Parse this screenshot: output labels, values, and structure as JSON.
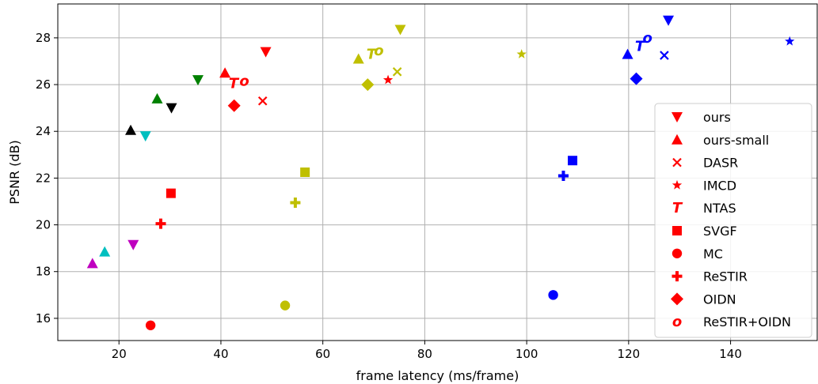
{
  "chart_data": {
    "type": "scatter",
    "xlabel": "frame latency (ms/frame)",
    "ylabel": "PSNR (dB)",
    "xlim": [
      8,
      157
    ],
    "ylim": [
      15.05,
      29.45
    ],
    "xticks": [
      20,
      40,
      60,
      80,
      100,
      120,
      140
    ],
    "yticks": [
      16,
      18,
      20,
      22,
      24,
      26,
      28
    ],
    "grid": true,
    "legend_position": "lower-right",
    "colors": {
      "red": "#ff0000",
      "green": "#008000",
      "black": "#000000",
      "cyan": "#00bfbf",
      "magenta": "#bf00bf",
      "olive": "#bfbf00",
      "blue": "#0000ff"
    },
    "legend": [
      {
        "label": "ours",
        "marker": "triangle-down"
      },
      {
        "label": "ours-small",
        "marker": "triangle-up"
      },
      {
        "label": "DASR",
        "marker": "x"
      },
      {
        "label": "IMCD",
        "marker": "star"
      },
      {
        "label": "NTAS",
        "marker": "T"
      },
      {
        "label": "SVGF",
        "marker": "square"
      },
      {
        "label": "MC",
        "marker": "circle"
      },
      {
        "label": "ReSTIR",
        "marker": "plus"
      },
      {
        "label": "OIDN",
        "marker": "diamond"
      },
      {
        "label": "ReSTIR+OIDN",
        "marker": "o-letter"
      }
    ],
    "points": [
      {
        "method": "ours",
        "marker": "triangle-down",
        "color": "red",
        "x": 48.8,
        "y": 27.4
      },
      {
        "method": "ours-small",
        "marker": "triangle-up",
        "color": "red",
        "x": 40.8,
        "y": 26.5
      },
      {
        "method": "DASR",
        "marker": "x",
        "color": "red",
        "x": 48.2,
        "y": 25.3
      },
      {
        "method": "NTAS",
        "marker": "T",
        "color": "red",
        "x": 42.5,
        "y": 26.05
      },
      {
        "method": "ReSTIR+OIDN",
        "marker": "o-letter",
        "color": "red",
        "x": 44.6,
        "y": 26.15
      },
      {
        "method": "OIDN",
        "marker": "diamond",
        "color": "red",
        "x": 42.6,
        "y": 25.1
      },
      {
        "method": "SVGF",
        "marker": "square",
        "color": "red",
        "x": 30.2,
        "y": 21.35
      },
      {
        "method": "ReSTIR",
        "marker": "plus",
        "color": "red",
        "x": 28.2,
        "y": 20.05
      },
      {
        "method": "MC",
        "marker": "circle",
        "color": "red",
        "x": 26.2,
        "y": 15.7
      },
      {
        "method": "IMCD",
        "marker": "star",
        "color": "red",
        "x": 72.8,
        "y": 26.2
      },
      {
        "method": "ours",
        "marker": "triangle-down",
        "color": "green",
        "x": 35.5,
        "y": 26.2
      },
      {
        "method": "ours-small",
        "marker": "triangle-up",
        "color": "green",
        "x": 27.5,
        "y": 25.4
      },
      {
        "method": "ours",
        "marker": "triangle-down",
        "color": "black",
        "x": 30.3,
        "y": 25.0
      },
      {
        "method": "ours-small",
        "marker": "triangle-up",
        "color": "black",
        "x": 22.3,
        "y": 24.05
      },
      {
        "method": "ours",
        "marker": "triangle-down",
        "color": "cyan",
        "x": 25.2,
        "y": 23.8
      },
      {
        "method": "ours-small",
        "marker": "triangle-up",
        "color": "cyan",
        "x": 17.2,
        "y": 18.85
      },
      {
        "method": "ours",
        "marker": "triangle-down",
        "color": "magenta",
        "x": 22.8,
        "y": 19.15
      },
      {
        "method": "ours-small",
        "marker": "triangle-up",
        "color": "magenta",
        "x": 14.8,
        "y": 18.35
      },
      {
        "method": "ours",
        "marker": "triangle-down",
        "color": "olive",
        "x": 75.2,
        "y": 28.35
      },
      {
        "method": "ours-small",
        "marker": "triangle-up",
        "color": "olive",
        "x": 67.0,
        "y": 27.1
      },
      {
        "method": "NTAS",
        "marker": "T",
        "color": "olive",
        "x": 69.5,
        "y": 27.3
      },
      {
        "method": "ReSTIR+OIDN",
        "marker": "o-letter",
        "color": "olive",
        "x": 71.0,
        "y": 27.45
      },
      {
        "method": "DASR",
        "marker": "x",
        "color": "olive",
        "x": 74.6,
        "y": 26.55
      },
      {
        "method": "OIDN",
        "marker": "diamond",
        "color": "olive",
        "x": 68.8,
        "y": 26.0
      },
      {
        "method": "IMCD",
        "marker": "star",
        "color": "olive",
        "x": 99.0,
        "y": 27.3
      },
      {
        "method": "SVGF",
        "marker": "square",
        "color": "olive",
        "x": 56.5,
        "y": 22.25
      },
      {
        "method": "ReSTIR",
        "marker": "plus",
        "color": "olive",
        "x": 54.6,
        "y": 20.95
      },
      {
        "method": "MC",
        "marker": "circle",
        "color": "olive",
        "x": 52.6,
        "y": 16.55
      },
      {
        "method": "ours",
        "marker": "triangle-down",
        "color": "blue",
        "x": 127.8,
        "y": 28.75
      },
      {
        "method": "ours-small",
        "marker": "triangle-up",
        "color": "blue",
        "x": 119.8,
        "y": 27.3
      },
      {
        "method": "NTAS",
        "marker": "T",
        "color": "blue",
        "x": 122.2,
        "y": 27.65
      },
      {
        "method": "ReSTIR+OIDN",
        "marker": "o-letter",
        "color": "blue",
        "x": 123.7,
        "y": 28.0
      },
      {
        "method": "DASR",
        "marker": "x",
        "color": "blue",
        "x": 127.0,
        "y": 27.25
      },
      {
        "method": "OIDN",
        "marker": "diamond",
        "color": "blue",
        "x": 121.5,
        "y": 26.25
      },
      {
        "method": "IMCD",
        "marker": "star",
        "color": "blue",
        "x": 151.6,
        "y": 27.85
      },
      {
        "method": "SVGF",
        "marker": "square",
        "color": "blue",
        "x": 109.0,
        "y": 22.75
      },
      {
        "method": "ReSTIR",
        "marker": "plus",
        "color": "blue",
        "x": 107.2,
        "y": 22.1
      },
      {
        "method": "MC",
        "marker": "circle",
        "color": "blue",
        "x": 105.2,
        "y": 17.0
      }
    ]
  }
}
